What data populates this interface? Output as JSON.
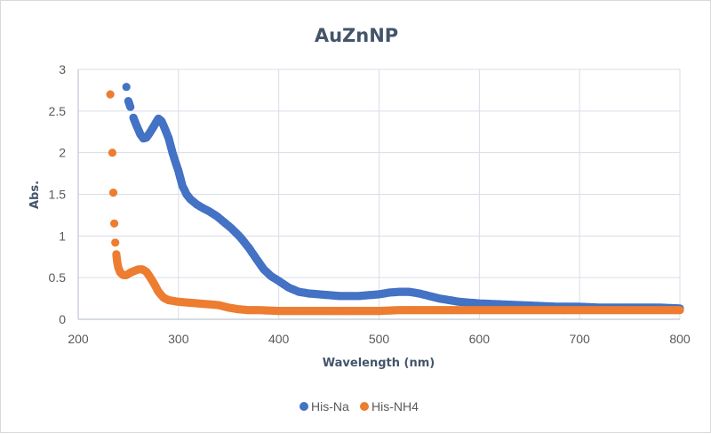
{
  "chart_data": {
    "type": "scatter",
    "title": "AuZnNP",
    "xlabel": "Wavelength (nm)",
    "ylabel": "Abs.",
    "xlim": [
      200,
      800
    ],
    "ylim": [
      0,
      3
    ],
    "xticks": [
      200,
      300,
      400,
      500,
      600,
      700,
      800
    ],
    "yticks": [
      0,
      0.5,
      1,
      1.5,
      2,
      2.5,
      3
    ],
    "ytick_labels": [
      "0",
      "0.5",
      "1",
      "1.5",
      "2",
      "2.5",
      "3"
    ],
    "grid": true,
    "legend_position": "bottom",
    "series": [
      {
        "name": "His-Na",
        "color": "#4472c4",
        "x": [
          248,
          250,
          252,
          255,
          258,
          262,
          265,
          268,
          272,
          276,
          280,
          283,
          286,
          290,
          294,
          298,
          300,
          304,
          308,
          312,
          318,
          325,
          330,
          338,
          345,
          352,
          358,
          362,
          370,
          378,
          385,
          392,
          400,
          410,
          420,
          430,
          440,
          450,
          460,
          470,
          480,
          490,
          500,
          510,
          520,
          530,
          540,
          550,
          560,
          570,
          580,
          590,
          600,
          620,
          640,
          660,
          680,
          700,
          720,
          740,
          760,
          780,
          800
        ],
        "y": [
          2.79,
          2.62,
          2.55,
          2.42,
          2.33,
          2.22,
          2.17,
          2.18,
          2.25,
          2.33,
          2.41,
          2.38,
          2.3,
          2.18,
          2.0,
          1.85,
          1.78,
          1.6,
          1.5,
          1.44,
          1.38,
          1.33,
          1.3,
          1.24,
          1.17,
          1.1,
          1.03,
          0.98,
          0.86,
          0.72,
          0.6,
          0.52,
          0.46,
          0.38,
          0.33,
          0.31,
          0.3,
          0.29,
          0.28,
          0.28,
          0.28,
          0.29,
          0.3,
          0.32,
          0.33,
          0.33,
          0.31,
          0.28,
          0.25,
          0.23,
          0.21,
          0.2,
          0.19,
          0.18,
          0.17,
          0.16,
          0.15,
          0.15,
          0.14,
          0.14,
          0.14,
          0.14,
          0.13
        ]
      },
      {
        "name": "His-NH4",
        "color": "#ed7d31",
        "x": [
          232,
          234,
          235,
          236,
          237,
          238,
          239,
          240,
          242,
          245,
          248,
          252,
          256,
          260,
          264,
          268,
          272,
          276,
          280,
          285,
          290,
          295,
          300,
          310,
          320,
          330,
          340,
          350,
          360,
          370,
          380,
          400,
          420,
          440,
          460,
          480,
          500,
          520,
          540,
          560,
          580,
          600,
          620,
          640,
          660,
          680,
          700,
          720,
          740,
          760,
          780,
          800
        ],
        "y": [
          2.7,
          2.0,
          1.52,
          1.15,
          0.92,
          0.78,
          0.68,
          0.62,
          0.56,
          0.53,
          0.53,
          0.56,
          0.58,
          0.6,
          0.6,
          0.57,
          0.5,
          0.42,
          0.33,
          0.26,
          0.23,
          0.22,
          0.21,
          0.2,
          0.19,
          0.18,
          0.17,
          0.14,
          0.12,
          0.11,
          0.11,
          0.1,
          0.1,
          0.1,
          0.1,
          0.1,
          0.1,
          0.11,
          0.11,
          0.11,
          0.11,
          0.11,
          0.11,
          0.11,
          0.11,
          0.11,
          0.11,
          0.11,
          0.11,
          0.11,
          0.11,
          0.11
        ]
      }
    ]
  },
  "legend": {
    "items": [
      {
        "label": "His-Na",
        "color": "#4472c4"
      },
      {
        "label": "His-NH4",
        "color": "#ed7d31"
      }
    ]
  }
}
